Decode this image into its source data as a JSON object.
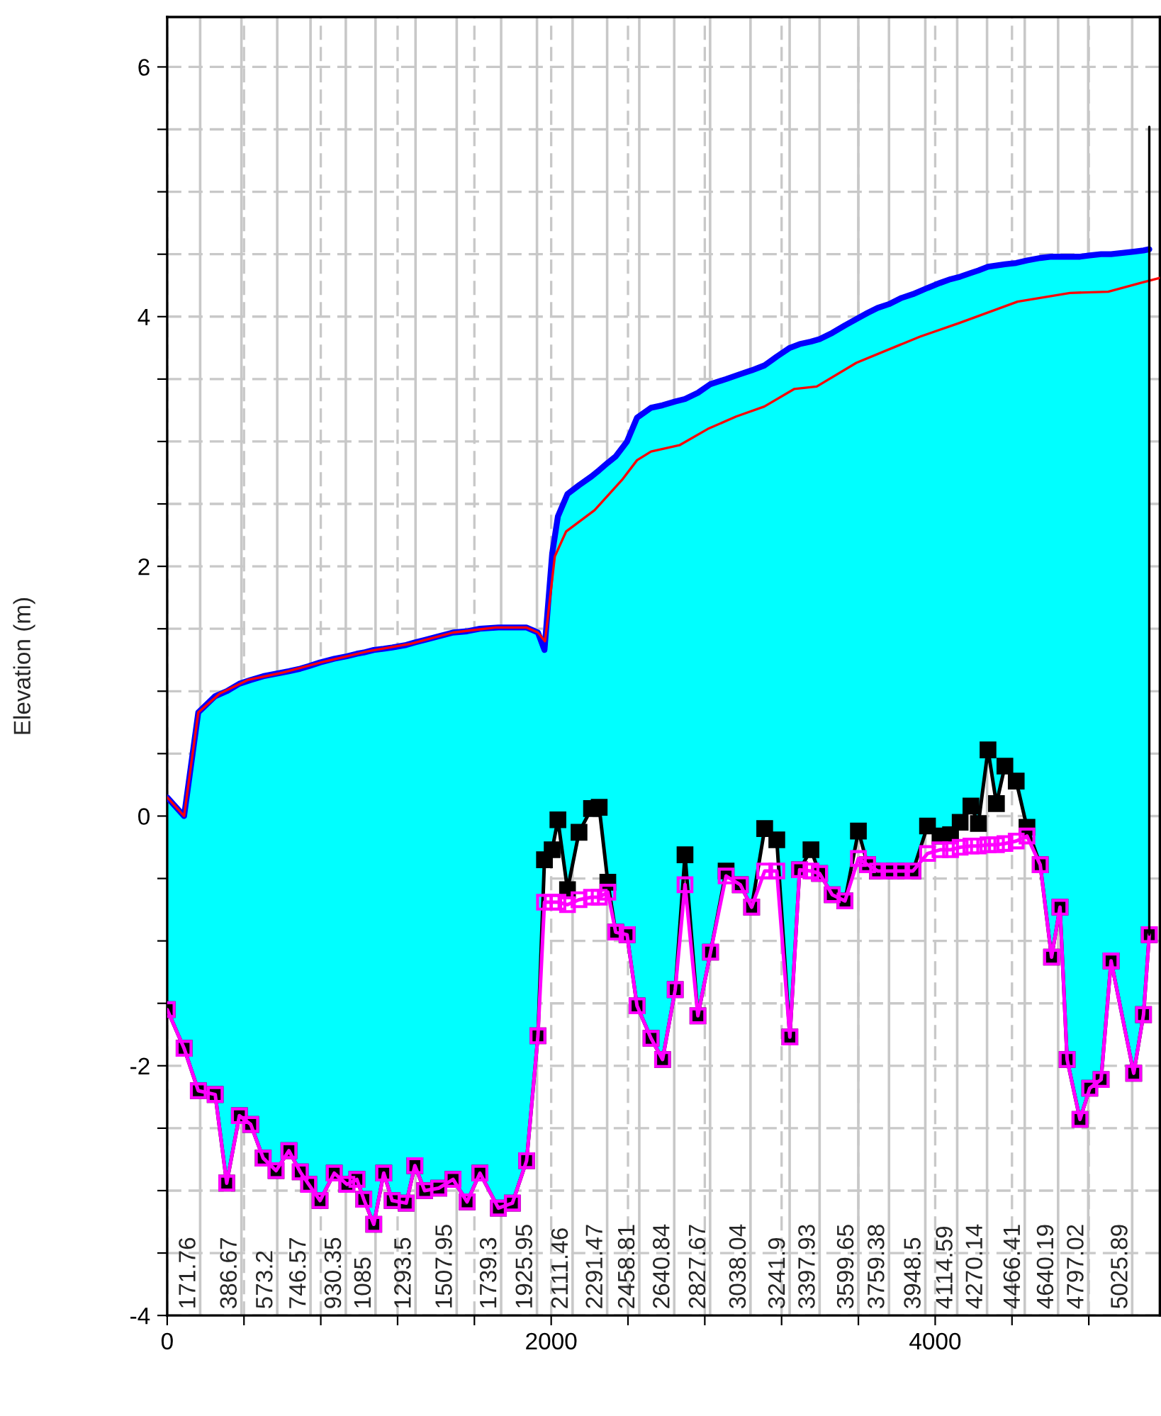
{
  "chart_data": {
    "type": "line",
    "ylabel": "Elevation (m)",
    "xlim": [
      0,
      5170
    ],
    "ylim": [
      -4,
      6.4
    ],
    "xticks": [
      0,
      {
        "value": 400,
        "label": null
      },
      {
        "value": 800,
        "label": null
      },
      {
        "value": 1200,
        "label": null
      },
      {
        "value": 1600,
        "label": null
      },
      2000,
      {
        "value": 2400,
        "label": null
      },
      {
        "value": 2800,
        "label": null
      },
      {
        "value": 3200,
        "label": null
      },
      {
        "value": 3600,
        "label": null
      },
      4000,
      {
        "value": 4400,
        "label": null
      },
      {
        "value": 4800,
        "label": null
      }
    ],
    "yticks": [
      -4,
      {
        "value": -3.5,
        "label": null
      },
      {
        "value": -3,
        "label": null
      },
      {
        "value": -2.5,
        "label": null
      },
      -2,
      {
        "value": -1.5,
        "label": null
      },
      {
        "value": -1,
        "label": null
      },
      {
        "value": -0.5,
        "label": null
      },
      0,
      {
        "value": 0.5,
        "label": null
      },
      {
        "value": 1,
        "label": null
      },
      {
        "value": 1.5,
        "label": null
      },
      2,
      {
        "value": 2.5,
        "label": null
      },
      {
        "value": 3,
        "label": null
      },
      {
        "value": 3.5,
        "label": null
      },
      4,
      {
        "value": 4.5,
        "label": null
      },
      {
        "value": 5,
        "label": null
      },
      {
        "value": 5.5,
        "label": null
      },
      6
    ],
    "grid": true,
    "x": [
      0,
      88,
      162,
      250,
      310,
      376,
      435,
      500,
      567,
      634,
      693,
      737,
      796,
      870,
      936,
      988,
      1024,
      1076,
      1128,
      1172,
      1245,
      1290,
      1341,
      1415,
      1489,
      1562,
      1629,
      1725,
      1798,
      1872,
      1931,
      1965,
      2005,
      2035,
      2085,
      2145,
      2210,
      2250,
      2295,
      2336,
      2395,
      2447,
      2520,
      2580,
      2646,
      2697,
      2764,
      2830,
      2911,
      2985,
      3044,
      3112,
      3175,
      3243,
      3294,
      3353,
      3398,
      3464,
      3530,
      3600,
      3648,
      3700,
      3759,
      3825,
      3884,
      3960,
      4025,
      4080,
      4130,
      4186,
      4225,
      4275,
      4319,
      4363,
      4422,
      4478,
      4547,
      4606,
      4650,
      4687,
      4754,
      4805,
      4864,
      4916,
      5034,
      5085,
      5115
    ],
    "series": [
      {
        "color": "#0000ff",
        "values": [
          0.15,
          0.0,
          0.83,
          0.96,
          1.0,
          1.06,
          1.09,
          1.12,
          1.14,
          1.16,
          1.18,
          1.2,
          1.23,
          1.26,
          1.28,
          1.3,
          1.31,
          1.33,
          1.34,
          1.35,
          1.37,
          1.39,
          1.41,
          1.44,
          1.47,
          1.48,
          1.5,
          1.51,
          1.51,
          1.51,
          1.47,
          1.33,
          2.1,
          2.4,
          2.58,
          2.65,
          2.72,
          2.77,
          2.83,
          2.88,
          3.0,
          3.19,
          3.27,
          3.29,
          3.32,
          3.34,
          3.39,
          3.46,
          3.5,
          3.54,
          3.57,
          3.61,
          3.68,
          3.75,
          3.78,
          3.8,
          3.82,
          3.87,
          3.93,
          3.99,
          4.03,
          4.07,
          4.1,
          4.15,
          4.18,
          4.23,
          4.27,
          4.3,
          4.32,
          4.35,
          4.37,
          4.4,
          4.41,
          4.42,
          4.43,
          4.45,
          4.47,
          4.48,
          4.48,
          4.48,
          4.48,
          4.49,
          4.5,
          4.5,
          4.52,
          4.53,
          4.54
        ],
        "upper": [
          0.15,
          0.0,
          0.83,
          0.96,
          1.0,
          1.06,
          1.09,
          1.12,
          1.14,
          1.16,
          1.18,
          1.2,
          1.23,
          1.26,
          1.28,
          1.3,
          1.31,
          1.33,
          1.34,
          1.35,
          1.37,
          1.39,
          1.41,
          1.44,
          1.47,
          1.48,
          1.5,
          1.51,
          1.51,
          1.51,
          1.47,
          1.33,
          2.1,
          2.4,
          2.58,
          2.65,
          2.72,
          2.77,
          2.83,
          2.88,
          3.0,
          3.19,
          3.27,
          3.29,
          3.32,
          3.34,
          3.39,
          3.46,
          3.5,
          3.54,
          3.57,
          3.61,
          3.68,
          3.75,
          3.78,
          3.8,
          3.82,
          3.87,
          3.93,
          3.99,
          4.03,
          4.07,
          4.1,
          4.15,
          4.18,
          4.23,
          4.27,
          4.3,
          4.32,
          4.35,
          4.37,
          4.4,
          4.41,
          4.42,
          4.43,
          4.45,
          4.47,
          4.48,
          4.48,
          4.48,
          4.48,
          4.49,
          4.5,
          4.5,
          4.52,
          4.53,
          4.54
        ],
        "lower": [
          -1.55,
          -1.86,
          -2.2,
          -2.23,
          -2.94,
          -2.4,
          -2.47,
          -2.74,
          -2.84,
          -2.68,
          -2.85,
          -2.95,
          -3.08,
          -2.86,
          -2.95,
          -2.91,
          -3.07,
          -3.27,
          -2.86,
          -3.08,
          -3.1,
          -2.8,
          -3.0,
          -2.98,
          -2.91,
          -3.09,
          -2.86,
          -3.14,
          -3.1,
          -2.76,
          -1.76,
          -0.35,
          -0.27,
          -0.03,
          -0.59,
          -0.13,
          0.06,
          0.07,
          -0.53,
          -0.93,
          -0.95,
          -1.52,
          -1.78,
          -1.95,
          -1.39,
          -0.31,
          -1.6,
          -1.09,
          -0.44,
          -0.55,
          -0.73,
          -0.1,
          -0.19,
          -1.77,
          -0.43,
          -0.27,
          -0.46,
          -0.63,
          -0.68,
          -0.12,
          -0.39,
          -0.44,
          -0.44,
          -0.44,
          -0.44,
          -0.08,
          -0.16,
          -0.15,
          -0.05,
          0.08,
          -0.06,
          0.53,
          0.1,
          0.4,
          0.28,
          -0.09,
          -0.39,
          -1.13,
          -0.73,
          -1.95,
          -2.43,
          -2.18,
          -2.11,
          -1.16,
          -2.06,
          -1.59,
          -0.95
        ]
      },
      {
        "color": "#000000",
        "marker": "square",
        "values": [
          -1.55,
          -1.86,
          -2.2,
          -2.23,
          -2.94,
          -2.4,
          -2.47,
          -2.74,
          -2.84,
          -2.68,
          -2.85,
          -2.95,
          -3.08,
          -2.86,
          -2.95,
          -2.91,
          -3.07,
          -3.27,
          -2.86,
          -3.08,
          -3.1,
          -2.8,
          -3.0,
          -2.98,
          -2.91,
          -3.09,
          -2.86,
          -3.14,
          -3.1,
          -2.76,
          -1.76,
          -0.35,
          -0.27,
          -0.03,
          -0.59,
          -0.13,
          0.06,
          0.07,
          -0.53,
          -0.93,
          -0.95,
          -1.52,
          -1.78,
          -1.95,
          -1.39,
          -0.31,
          -1.6,
          -1.09,
          -0.44,
          -0.55,
          -0.73,
          -0.1,
          -0.19,
          -1.77,
          -0.43,
          -0.27,
          -0.46,
          -0.63,
          -0.68,
          -0.12,
          -0.39,
          -0.44,
          -0.44,
          -0.44,
          -0.44,
          -0.08,
          -0.16,
          -0.15,
          -0.05,
          0.08,
          -0.06,
          0.53,
          0.1,
          0.4,
          0.28,
          -0.09,
          -0.39,
          -1.13,
          -0.73,
          -1.95,
          -2.43,
          -2.18,
          -2.11,
          -1.16,
          -2.06,
          -1.59,
          -0.95
        ]
      },
      {
        "color": "#ff00ff",
        "marker": "square",
        "values": [
          -1.55,
          -1.86,
          -2.2,
          -2.23,
          -2.94,
          -2.4,
          -2.47,
          -2.74,
          -2.84,
          -2.68,
          -2.85,
          -2.95,
          -3.08,
          -2.86,
          -2.95,
          -2.91,
          -3.07,
          -3.27,
          -2.86,
          -3.08,
          -3.1,
          -2.8,
          -3.0,
          -2.98,
          -2.91,
          -3.09,
          -2.86,
          -3.14,
          -3.1,
          -2.76,
          -1.76,
          -0.69,
          -0.69,
          -0.69,
          -0.71,
          -0.67,
          -0.65,
          -0.65,
          -0.61,
          -0.93,
          -0.95,
          -1.52,
          -1.78,
          -1.95,
          -1.39,
          -0.55,
          -1.6,
          -1.09,
          -0.48,
          -0.55,
          -0.73,
          -0.44,
          -0.44,
          -1.77,
          -0.43,
          -0.44,
          -0.46,
          -0.63,
          -0.68,
          -0.34,
          -0.39,
          -0.44,
          -0.44,
          -0.44,
          -0.44,
          -0.3,
          -0.27,
          -0.27,
          -0.25,
          -0.24,
          -0.24,
          -0.23,
          -0.23,
          -0.22,
          -0.2,
          -0.16,
          -0.39,
          -1.13,
          -0.73,
          -1.95,
          -2.43,
          -2.18,
          -2.11,
          -1.16,
          -2.06,
          -1.59,
          -0.95
        ]
      },
      {
        "color": "#ff0000",
        "x": [
          0,
          88,
          162,
          273,
          420,
          604,
          825,
          1047,
          1268,
          1489,
          1710,
          1872,
          1931,
          1968,
          2019,
          2078,
          2226,
          2373,
          2447,
          2520,
          2668,
          2815,
          2963,
          3110,
          3265,
          3383,
          3589,
          3921,
          4127,
          4429,
          4702,
          4901,
          5071,
          5170
        ],
        "values": [
          0.15,
          0.0,
          0.83,
          0.98,
          1.09,
          1.15,
          1.24,
          1.32,
          1.38,
          1.47,
          1.51,
          1.51,
          1.47,
          1.4,
          2.08,
          2.28,
          2.45,
          2.7,
          2.85,
          2.92,
          2.97,
          3.1,
          3.2,
          3.28,
          3.42,
          3.44,
          3.63,
          3.84,
          3.95,
          4.12,
          4.19,
          4.2,
          4.27,
          4.31
        ]
      },
      {
        "color": "#000000",
        "x": [
          5115,
          5115
        ],
        "values": [
          5.52,
          -0.95
        ]
      }
    ],
    "ref_lines": [
      {
        "axis": "x",
        "value": 171.76,
        "label": "171.76",
        "color": "#c8c8c8"
      },
      {
        "axis": "x",
        "value": 386.67,
        "label": "386.67",
        "color": "#c8c8c8"
      },
      {
        "axis": "x",
        "value": 573.2,
        "label": "573.2",
        "color": "#c8c8c8"
      },
      {
        "axis": "x",
        "value": 746.57,
        "label": "746.57",
        "color": "#c8c8c8"
      },
      {
        "axis": "x",
        "value": 930.35,
        "label": "930.35",
        "color": "#c8c8c8"
      },
      {
        "axis": "x",
        "value": 1085,
        "label": "1085",
        "color": "#c8c8c8"
      },
      {
        "axis": "x",
        "value": 1293.5,
        "label": "1293.5",
        "color": "#c8c8c8"
      },
      {
        "axis": "x",
        "value": 1507.95,
        "label": "1507.95",
        "color": "#c8c8c8"
      },
      {
        "axis": "x",
        "value": 1739.3,
        "label": "1739.3",
        "color": "#c8c8c8"
      },
      {
        "axis": "x",
        "value": 1925.95,
        "label": "1925.95",
        "color": "#c8c8c8"
      },
      {
        "axis": "x",
        "value": 2111.46,
        "label": "2111.46",
        "color": "#c8c8c8"
      },
      {
        "axis": "x",
        "value": 2291.47,
        "label": "2291.47",
        "color": "#c8c8c8"
      },
      {
        "axis": "x",
        "value": 2458.81,
        "label": "2458.81",
        "color": "#c8c8c8"
      },
      {
        "axis": "x",
        "value": 2640.84,
        "label": "2640.84",
        "color": "#c8c8c8"
      },
      {
        "axis": "x",
        "value": 2827.67,
        "label": "2827.67",
        "color": "#c8c8c8"
      },
      {
        "axis": "x",
        "value": 3038.04,
        "label": "3038.04",
        "color": "#c8c8c8"
      },
      {
        "axis": "x",
        "value": 3241.9,
        "label": "3241.9",
        "color": "#c8c8c8"
      },
      {
        "axis": "x",
        "value": 3397.93,
        "label": "3397.93",
        "color": "#c8c8c8"
      },
      {
        "axis": "x",
        "value": 3599.65,
        "label": "3599.65",
        "color": "#c8c8c8"
      },
      {
        "axis": "x",
        "value": 3759.38,
        "label": "3759.38",
        "color": "#c8c8c8"
      },
      {
        "axis": "x",
        "value": 3948.5,
        "label": "3948.5",
        "color": "#c8c8c8"
      },
      {
        "axis": "x",
        "value": 4114.59,
        "label": "4114.59",
        "color": "#c8c8c8"
      },
      {
        "axis": "x",
        "value": 4270.14,
        "label": "4270.14",
        "color": "#c8c8c8"
      },
      {
        "axis": "x",
        "value": 4466.41,
        "label": "4466.41",
        "color": "#c8c8c8"
      },
      {
        "axis": "x",
        "value": 4640.19,
        "label": "4640.19",
        "color": "#c8c8c8"
      },
      {
        "axis": "x",
        "value": 4797.02,
        "label": "4797.02",
        "color": "#c8c8c8"
      },
      {
        "axis": "x",
        "value": 5025.89,
        "label": "5025.89",
        "color": "#c8c8c8"
      }
    ]
  }
}
